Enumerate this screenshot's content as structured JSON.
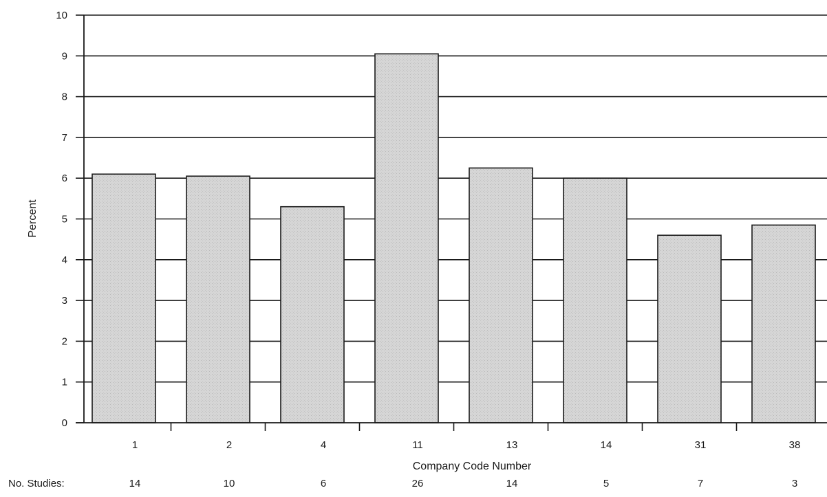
{
  "chart_data": {
    "type": "bar",
    "xlabel": "Company Code Number",
    "ylabel": "Percent",
    "ylim": [
      0,
      10
    ],
    "yticks": [
      "0",
      "1",
      "2",
      "3",
      "4",
      "5",
      "6",
      "7",
      "8",
      "9",
      "10"
    ],
    "categories": [
      "1",
      "2",
      "4",
      "11",
      "13",
      "14",
      "31",
      "38"
    ],
    "values": [
      6.1,
      6.05,
      5.3,
      9.05,
      6.25,
      6.0,
      4.6,
      4.85
    ],
    "studies_label": "No. Studies:",
    "studies": [
      "14",
      "10",
      "6",
      "26",
      "14",
      "5",
      "7",
      "3"
    ],
    "grid": true,
    "bar_color": "#dcdcdc",
    "grid_color": "#1a1a1a"
  }
}
